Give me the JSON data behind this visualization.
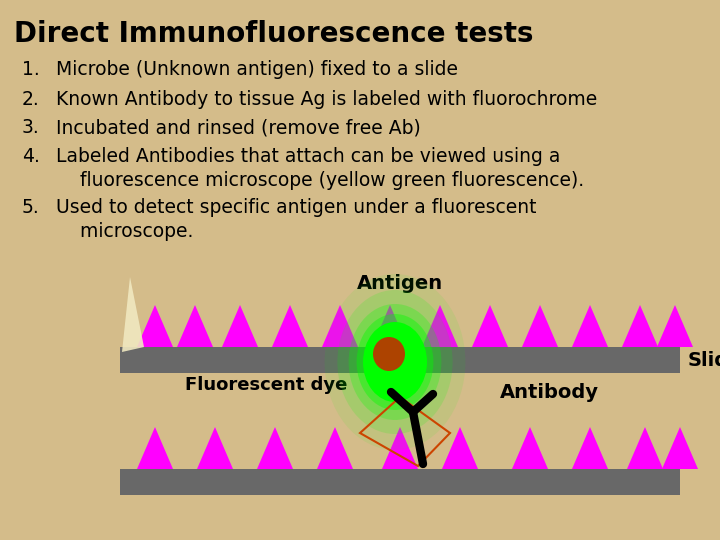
{
  "background_color": "#d4bc8a",
  "title": "Direct Immunofluorescence tests",
  "title_fontsize": 20,
  "title_fontweight": "bold",
  "title_color": "#000000",
  "text_color": "#000000",
  "items": [
    "Microbe (Unknown antigen) fixed to a slide",
    "Known Antibody to tissue Ag is labeled with fluorochrome",
    "Incubated and rinsed (remove free Ab)",
    "Labeled Antibodies that attach can be viewed using a\n    fluorescence microscope (yellow green fluorescence).",
    "Used to detect specific antigen under a fluorescent\n    microscope."
  ],
  "item_fontsize": 13.5,
  "slide_color": "#686868",
  "antigen_color": "#ff00ff",
  "glow_color": "#00ff00",
  "inner_color": "#cc2200",
  "antibody_outline_color": "#cc4400"
}
